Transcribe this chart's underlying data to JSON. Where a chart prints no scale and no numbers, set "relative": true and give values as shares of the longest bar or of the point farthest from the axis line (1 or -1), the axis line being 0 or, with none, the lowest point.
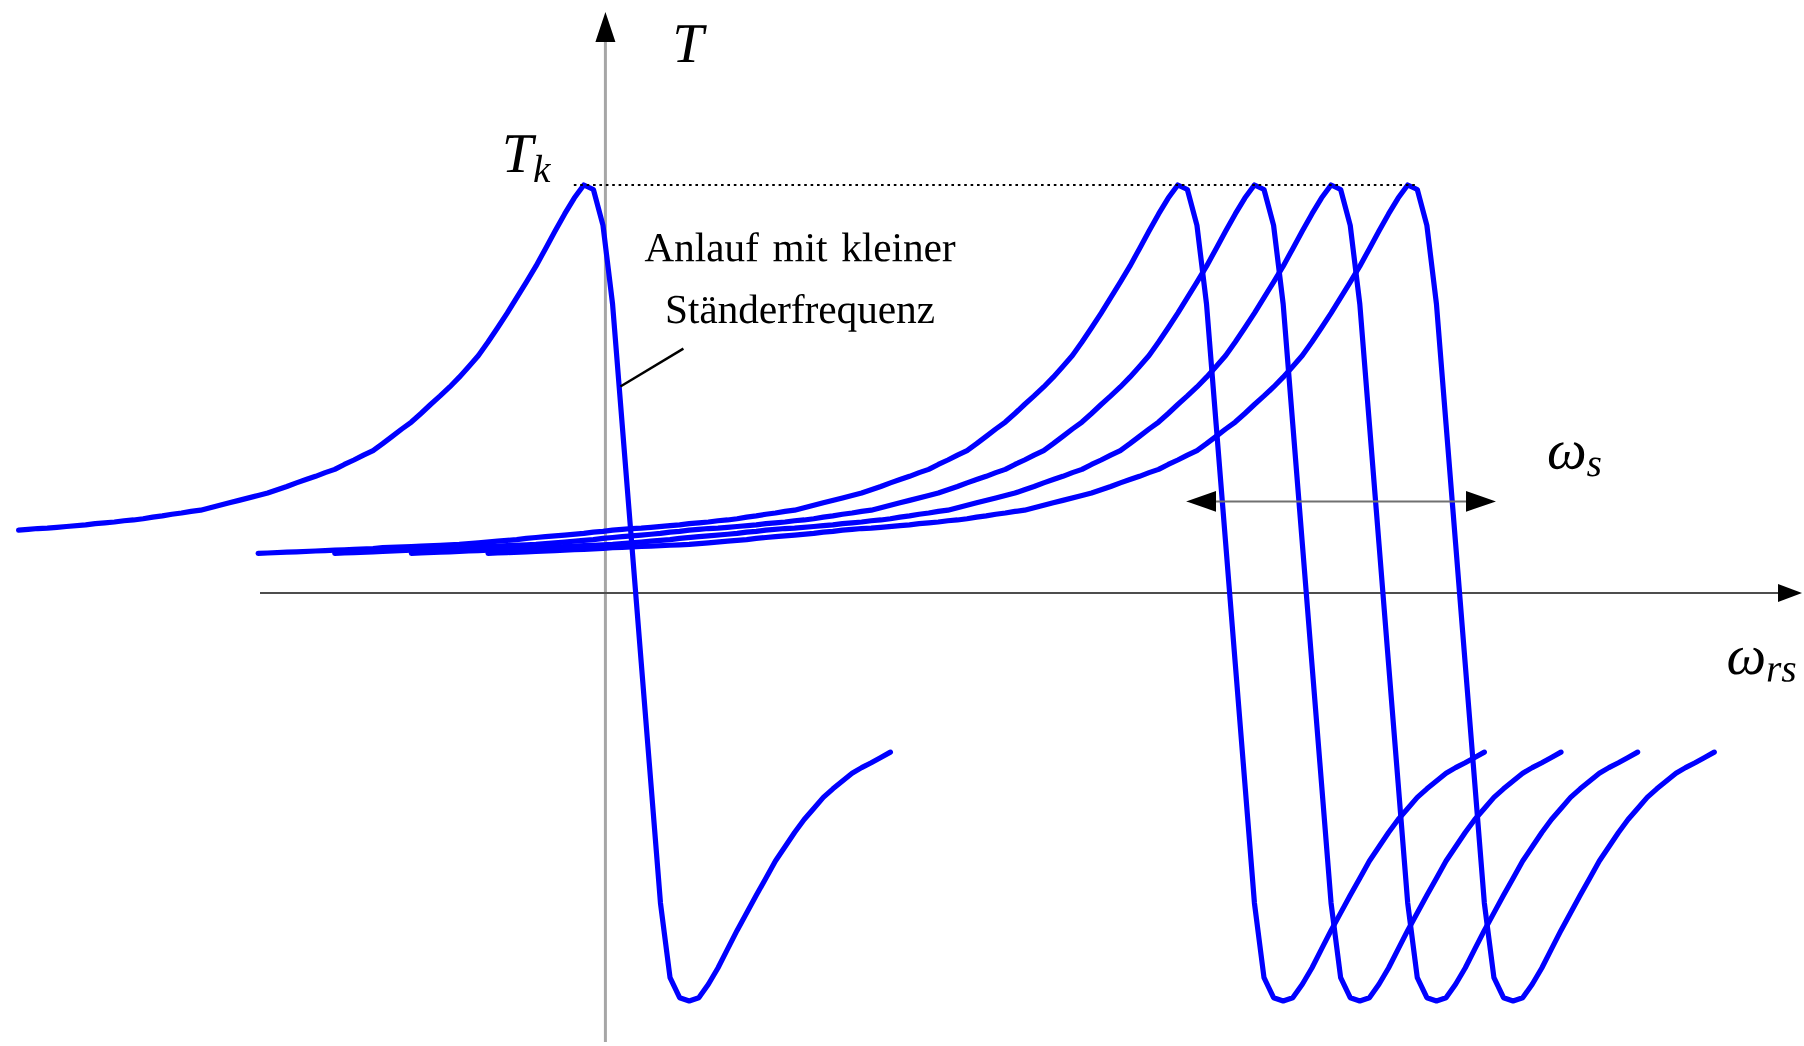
{
  "chart_data": {
    "type": "line",
    "relative": true,
    "xlabel": "ω$_{rs}$",
    "ylabel": "T",
    "categories": [
      null,
      null,
      null,
      null,
      null,
      null,
      null,
      null,
      null,
      null,
      null,
      null,
      null,
      null,
      null,
      null,
      null,
      null,
      null,
      null,
      null,
      null,
      null,
      null,
      null,
      null,
      null,
      null,
      null,
      null,
      null,
      null,
      null,
      null,
      null,
      null,
      null,
      null,
      null,
      null,
      null,
      null,
      null,
      null,
      null,
      null,
      null,
      null,
      null,
      null,
      null,
      null,
      null,
      null,
      null,
      null,
      null,
      null,
      null,
      null,
      null,
      null,
      null,
      null,
      null,
      null,
      null,
      null,
      null,
      null,
      null,
      null,
      null,
      null,
      null,
      null,
      null,
      null,
      null,
      null,
      null,
      null,
      null,
      null,
      null,
      null,
      null,
      null,
      null,
      null,
      null,
      null,
      null,
      null,
      null,
      null,
      null,
      null,
      null,
      null,
      null,
      null,
      null,
      null,
      null,
      null,
      null,
      null,
      null,
      null,
      null,
      null,
      null,
      null,
      null,
      null,
      null,
      null,
      null,
      null,
      null,
      null,
      null,
      null,
      null,
      null,
      null,
      null,
      null,
      null,
      null,
      null,
      null,
      null,
      null,
      null,
      null,
      null,
      null,
      null,
      null,
      null,
      null,
      null,
      null,
      null,
      null,
      null,
      null,
      null,
      null,
      null,
      null,
      null,
      null,
      null,
      null,
      null,
      null,
      null,
      null,
      null,
      null,
      null,
      null,
      null,
      null,
      null,
      null,
      null,
      null,
      null,
      null,
      null,
      null,
      null,
      null,
      null
    ],
    "series": [
      {
        "color": "#0000ff",
        "values": [
          0.154,
          0.156,
          0.158,
          0.159,
          0.161,
          0.163,
          0.165,
          0.167,
          0.17,
          0.172,
          0.174,
          0.177,
          0.179,
          0.182,
          0.186,
          0.189,
          0.193,
          0.196,
          0.2,
          0.203,
          0.209,
          0.215,
          0.221,
          0.227,
          0.233,
          0.239,
          0.245,
          0.253,
          0.261,
          0.27,
          0.278,
          0.286,
          0.295,
          0.303,
          0.315,
          0.326,
          0.338,
          0.349,
          0.366,
          0.384,
          0.402,
          0.419,
          0.44,
          0.462,
          0.483,
          0.505,
          0.529,
          0.555,
          0.582,
          0.615,
          0.65,
          0.686,
          0.724,
          0.762,
          0.801,
          0.844,
          0.887,
          0.929,
          0.968,
          1,
          0.989,
          0.901,
          0.708,
          0.414,
          0.121,
          -0.173,
          -0.466,
          -0.76,
          -0.943,
          -0.992,
          -1,
          -0.992,
          -0.959,
          -0.919,
          -0.873,
          -0.827,
          -0.784,
          -0.741,
          -0.699,
          -0.657,
          -0.622,
          -0.587,
          -0.555,
          -0.528,
          -0.501,
          -0.48,
          -0.461,
          -0.442,
          -0.428,
          -0.416,
          -0.403,
          -0.39,
          null,
          null,
          null,
          null,
          null,
          null,
          null,
          null,
          null,
          null,
          null,
          null,
          null,
          null,
          null,
          null,
          null,
          null,
          null,
          null,
          null,
          null,
          null,
          null,
          null,
          null,
          null,
          null,
          null,
          null,
          null,
          null,
          null,
          null,
          null,
          null,
          null,
          null,
          null,
          null,
          null,
          null,
          null,
          null,
          null,
          null,
          null,
          null,
          null,
          null,
          null,
          null,
          null,
          null,
          null,
          null,
          null,
          null,
          null,
          null,
          null,
          null,
          null,
          null,
          null,
          null,
          null,
          null,
          null,
          null,
          null,
          null,
          null,
          null,
          null,
          null,
          null,
          null,
          null,
          null,
          null,
          null,
          null,
          null,
          null,
          null
        ]
      },
      {
        "color": "#0000ff",
        "values": [
          null,
          null,
          null,
          null,
          null,
          null,
          null,
          null,
          null,
          null,
          null,
          null,
          null,
          null,
          null,
          null,
          null,
          null,
          null,
          null,
          null,
          null,
          null,
          null,
          null,
          0.097,
          0.098,
          0.099,
          0.1,
          0.101,
          0.102,
          0.103,
          0.104,
          0.105,
          0.106,
          0.107,
          0.108,
          0.109,
          0.111,
          0.112,
          0.113,
          0.114,
          0.115,
          0.116,
          0.117,
          0.118,
          0.119,
          0.121,
          0.123,
          0.125,
          0.127,
          0.129,
          0.131,
          0.134,
          0.136,
          0.138,
          0.14,
          0.142,
          0.144,
          0.146,
          0.149,
          0.151,
          0.154,
          0.156,
          0.158,
          0.159,
          0.161,
          0.163,
          0.165,
          0.167,
          0.17,
          0.172,
          0.174,
          0.177,
          0.179,
          0.182,
          0.186,
          0.189,
          0.193,
          0.196,
          0.2,
          0.203,
          0.209,
          0.215,
          0.221,
          0.227,
          0.233,
          0.239,
          0.245,
          0.253,
          0.261,
          0.27,
          0.278,
          0.286,
          0.295,
          0.303,
          0.315,
          0.326,
          0.338,
          0.349,
          0.366,
          0.384,
          0.402,
          0.419,
          0.44,
          0.462,
          0.483,
          0.505,
          0.529,
          0.555,
          0.582,
          0.615,
          0.65,
          0.686,
          0.724,
          0.762,
          0.801,
          0.844,
          0.887,
          0.929,
          0.968,
          1,
          0.989,
          0.901,
          0.708,
          0.414,
          0.121,
          -0.173,
          -0.466,
          -0.76,
          -0.943,
          -0.992,
          -1,
          -0.992,
          -0.959,
          -0.919,
          -0.873,
          -0.827,
          -0.784,
          -0.741,
          -0.699,
          -0.657,
          -0.622,
          -0.587,
          -0.555,
          -0.528,
          -0.501,
          -0.48,
          -0.461,
          -0.442,
          -0.428,
          -0.416,
          -0.403,
          -0.39,
          null,
          null,
          null,
          null,
          null,
          null,
          null,
          null,
          null,
          null,
          null,
          null,
          null,
          null,
          null,
          null,
          null,
          null,
          null,
          null,
          null,
          null,
          null,
          null
        ]
      },
      {
        "color": "#0000ff",
        "values": [
          null,
          null,
          null,
          null,
          null,
          null,
          null,
          null,
          null,
          null,
          null,
          null,
          null,
          null,
          null,
          null,
          null,
          null,
          null,
          null,
          null,
          null,
          null,
          null,
          null,
          null,
          null,
          null,
          null,
          null,
          null,
          null,
          null,
          0.097,
          0.098,
          0.099,
          0.1,
          0.101,
          0.102,
          0.103,
          0.104,
          0.105,
          0.106,
          0.107,
          0.108,
          0.109,
          0.111,
          0.112,
          0.113,
          0.114,
          0.115,
          0.116,
          0.117,
          0.118,
          0.119,
          0.121,
          0.123,
          0.125,
          0.127,
          0.129,
          0.131,
          0.134,
          0.136,
          0.138,
          0.14,
          0.142,
          0.144,
          0.146,
          0.149,
          0.151,
          0.154,
          0.156,
          0.158,
          0.159,
          0.161,
          0.163,
          0.165,
          0.167,
          0.17,
          0.172,
          0.174,
          0.177,
          0.179,
          0.182,
          0.186,
          0.189,
          0.193,
          0.196,
          0.2,
          0.203,
          0.209,
          0.215,
          0.221,
          0.227,
          0.233,
          0.239,
          0.245,
          0.253,
          0.261,
          0.27,
          0.278,
          0.286,
          0.295,
          0.303,
          0.315,
          0.326,
          0.338,
          0.349,
          0.366,
          0.384,
          0.402,
          0.419,
          0.44,
          0.462,
          0.483,
          0.505,
          0.529,
          0.555,
          0.582,
          0.615,
          0.65,
          0.686,
          0.724,
          0.762,
          0.801,
          0.844,
          0.887,
          0.929,
          0.968,
          1,
          0.989,
          0.901,
          0.708,
          0.414,
          0.121,
          -0.173,
          -0.466,
          -0.76,
          -0.943,
          -0.992,
          -1,
          -0.992,
          -0.959,
          -0.919,
          -0.873,
          -0.827,
          -0.784,
          -0.741,
          -0.699,
          -0.657,
          -0.622,
          -0.587,
          -0.555,
          -0.528,
          -0.501,
          -0.48,
          -0.461,
          -0.442,
          -0.428,
          -0.416,
          -0.403,
          -0.39,
          null,
          null,
          null,
          null,
          null,
          null,
          null,
          null,
          null,
          null,
          null,
          null,
          null,
          null,
          null,
          null
        ]
      },
      {
        "color": "#0000ff",
        "values": [
          null,
          null,
          null,
          null,
          null,
          null,
          null,
          null,
          null,
          null,
          null,
          null,
          null,
          null,
          null,
          null,
          null,
          null,
          null,
          null,
          null,
          null,
          null,
          null,
          null,
          null,
          null,
          null,
          null,
          null,
          null,
          null,
          null,
          null,
          null,
          null,
          null,
          null,
          null,
          null,
          null,
          0.097,
          0.098,
          0.099,
          0.1,
          0.101,
          0.102,
          0.103,
          0.104,
          0.105,
          0.106,
          0.107,
          0.108,
          0.109,
          0.111,
          0.112,
          0.113,
          0.114,
          0.115,
          0.116,
          0.117,
          0.118,
          0.119,
          0.121,
          0.123,
          0.125,
          0.127,
          0.129,
          0.131,
          0.134,
          0.136,
          0.138,
          0.14,
          0.142,
          0.144,
          0.146,
          0.149,
          0.151,
          0.154,
          0.156,
          0.158,
          0.159,
          0.161,
          0.163,
          0.165,
          0.167,
          0.17,
          0.172,
          0.174,
          0.177,
          0.179,
          0.182,
          0.186,
          0.189,
          0.193,
          0.196,
          0.2,
          0.203,
          0.209,
          0.215,
          0.221,
          0.227,
          0.233,
          0.239,
          0.245,
          0.253,
          0.261,
          0.27,
          0.278,
          0.286,
          0.295,
          0.303,
          0.315,
          0.326,
          0.338,
          0.349,
          0.366,
          0.384,
          0.402,
          0.419,
          0.44,
          0.462,
          0.483,
          0.505,
          0.529,
          0.555,
          0.582,
          0.615,
          0.65,
          0.686,
          0.724,
          0.762,
          0.801,
          0.844,
          0.887,
          0.929,
          0.968,
          1,
          0.989,
          0.901,
          0.708,
          0.414,
          0.121,
          -0.173,
          -0.466,
          -0.76,
          -0.943,
          -0.992,
          -1,
          -0.992,
          -0.959,
          -0.919,
          -0.873,
          -0.827,
          -0.784,
          -0.741,
          -0.699,
          -0.657,
          -0.622,
          -0.587,
          -0.555,
          -0.528,
          -0.501,
          -0.48,
          -0.461,
          -0.442,
          -0.428,
          -0.416,
          -0.403,
          -0.39,
          null,
          null,
          null,
          null,
          null,
          null,
          null,
          null
        ]
      },
      {
        "color": "#0000ff",
        "values": [
          null,
          null,
          null,
          null,
          null,
          null,
          null,
          null,
          null,
          null,
          null,
          null,
          null,
          null,
          null,
          null,
          null,
          null,
          null,
          null,
          null,
          null,
          null,
          null,
          null,
          null,
          null,
          null,
          null,
          null,
          null,
          null,
          null,
          null,
          null,
          null,
          null,
          null,
          null,
          null,
          null,
          null,
          null,
          null,
          null,
          null,
          null,
          null,
          null,
          0.097,
          0.098,
          0.099,
          0.1,
          0.101,
          0.102,
          0.103,
          0.104,
          0.105,
          0.106,
          0.107,
          0.108,
          0.109,
          0.111,
          0.112,
          0.113,
          0.114,
          0.115,
          0.116,
          0.117,
          0.118,
          0.119,
          0.121,
          0.123,
          0.125,
          0.127,
          0.129,
          0.131,
          0.134,
          0.136,
          0.138,
          0.14,
          0.142,
          0.144,
          0.146,
          0.149,
          0.151,
          0.154,
          0.156,
          0.158,
          0.159,
          0.161,
          0.163,
          0.165,
          0.167,
          0.17,
          0.172,
          0.174,
          0.177,
          0.179,
          0.182,
          0.186,
          0.189,
          0.193,
          0.196,
          0.2,
          0.203,
          0.209,
          0.215,
          0.221,
          0.227,
          0.233,
          0.239,
          0.245,
          0.253,
          0.261,
          0.27,
          0.278,
          0.286,
          0.295,
          0.303,
          0.315,
          0.326,
          0.338,
          0.349,
          0.366,
          0.384,
          0.402,
          0.419,
          0.44,
          0.462,
          0.483,
          0.505,
          0.529,
          0.555,
          0.582,
          0.615,
          0.65,
          0.686,
          0.724,
          0.762,
          0.801,
          0.844,
          0.887,
          0.929,
          0.968,
          1,
          0.989,
          0.901,
          0.708,
          0.414,
          0.121,
          -0.173,
          -0.466,
          -0.76,
          -0.943,
          -0.992,
          -1,
          -0.992,
          -0.959,
          -0.919,
          -0.873,
          -0.827,
          -0.784,
          -0.741,
          -0.699,
          -0.657,
          -0.622,
          -0.587,
          -0.555,
          -0.528,
          -0.501,
          -0.48,
          -0.461,
          -0.442,
          -0.428,
          -0.416,
          -0.403,
          -0.39
        ]
      }
    ],
    "ref_lines": [
      {
        "axis": "y",
        "value": 1,
        "label": "T$_{k}$",
        "color": "#000000",
        "line_style": "dotted"
      }
    ],
    "annotations": [
      "Anlauf mit kleiner Ständerfrequenz",
      "ω$_{s}$"
    ]
  }
}
